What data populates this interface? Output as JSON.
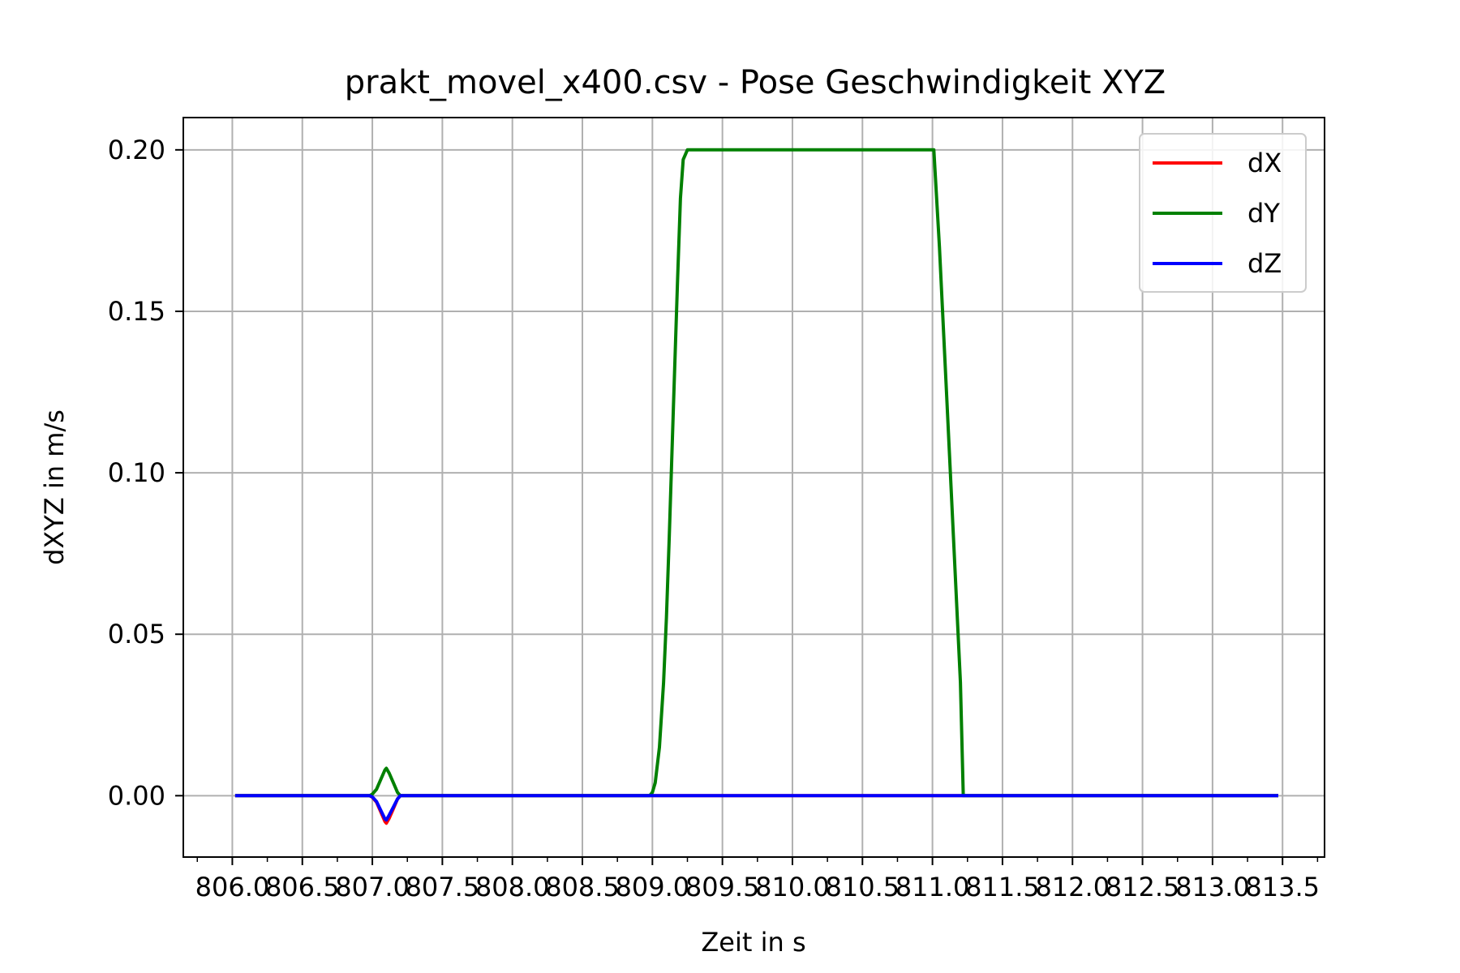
{
  "chart_data": {
    "type": "line",
    "title": "prakt_movel_x400.csv - Pose Geschwindigkeit XYZ",
    "xlabel": "Zeit in s",
    "ylabel": "dXYZ in m/s",
    "xlim": [
      805.65,
      813.8
    ],
    "ylim": [
      -0.019,
      0.21
    ],
    "xticks": [
      806.0,
      806.5,
      807.0,
      807.5,
      808.0,
      808.5,
      809.0,
      809.5,
      810.0,
      810.5,
      811.0,
      811.5,
      812.0,
      812.5,
      813.0,
      813.5
    ],
    "xtick_labels": [
      "806.0",
      "806.5",
      "807.0",
      "807.5",
      "808.0",
      "808.5",
      "809.0",
      "809.5",
      "810.0",
      "810.5",
      "811.0",
      "811.5",
      "812.0",
      "812.5",
      "813.0",
      "813.5"
    ],
    "xticks_minor_step": 0.25,
    "yticks": [
      0.0,
      0.05,
      0.1,
      0.15,
      0.2
    ],
    "ytick_labels": [
      "0.00",
      "0.05",
      "0.10",
      "0.15",
      "0.20"
    ],
    "grid": true,
    "legend_position": "top-right",
    "series": [
      {
        "name": "dX",
        "color": "#ff0000",
        "x": [
          806.02,
          806.98,
          807.0,
          807.03,
          807.06,
          807.09,
          807.1,
          807.12,
          807.15,
          807.18,
          807.2,
          813.47
        ],
        "y": [
          0,
          0,
          -0.0005,
          -0.002,
          -0.005,
          -0.008,
          -0.0085,
          -0.007,
          -0.004,
          -0.001,
          0,
          0
        ]
      },
      {
        "name": "dY",
        "color": "#008000",
        "x": [
          806.02,
          806.98,
          807.0,
          807.03,
          807.06,
          807.09,
          807.1,
          807.12,
          807.15,
          807.18,
          807.2,
          808.98,
          809.0,
          809.02,
          809.05,
          809.08,
          809.1,
          809.12,
          809.15,
          809.18,
          809.2,
          809.22,
          809.25,
          811.0,
          811.01,
          811.05,
          811.1,
          811.15,
          811.2,
          811.22,
          813.47
        ],
        "y": [
          0,
          0,
          0.0005,
          0.002,
          0.005,
          0.008,
          0.0085,
          0.007,
          0.004,
          0.001,
          0,
          0,
          0.001,
          0.004,
          0.015,
          0.035,
          0.055,
          0.08,
          0.12,
          0.16,
          0.185,
          0.197,
          0.2,
          0.2,
          0.2,
          0.17,
          0.125,
          0.08,
          0.035,
          0,
          0
        ]
      },
      {
        "name": "dZ",
        "color": "#0000ff",
        "x": [
          806.02,
          806.98,
          807.0,
          807.03,
          807.06,
          807.09,
          807.1,
          807.12,
          807.15,
          807.18,
          807.2,
          813.47
        ],
        "y": [
          0,
          0,
          -0.0004,
          -0.0018,
          -0.0045,
          -0.0072,
          -0.0075,
          -0.006,
          -0.0035,
          -0.001,
          0,
          0
        ]
      }
    ]
  }
}
